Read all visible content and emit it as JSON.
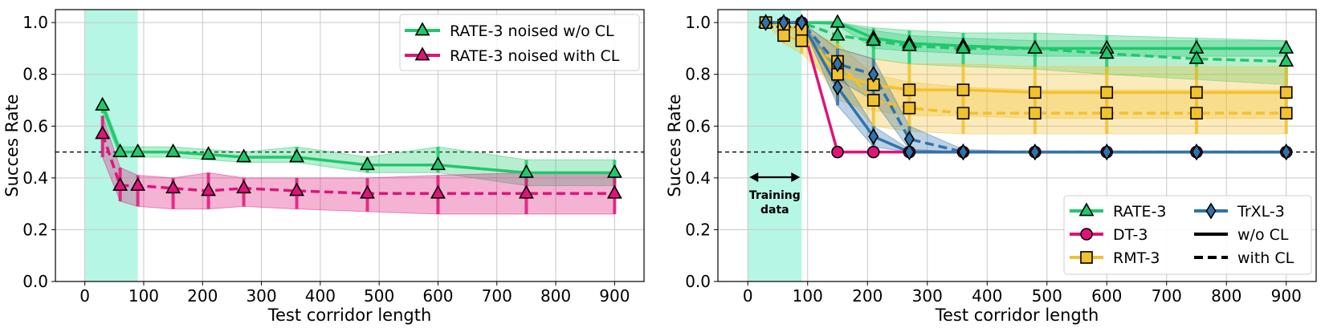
{
  "chart_data": [
    {
      "type": "line",
      "xlabel": "Test corridor length",
      "ylabel": "Succes Rate",
      "xlim": [
        -50,
        950
      ],
      "ylim": [
        0.0,
        1.05
      ],
      "xticks": [
        0,
        100,
        200,
        300,
        400,
        500,
        600,
        700,
        800,
        900
      ],
      "yticks": [
        "0.0",
        "0.2",
        "0.4",
        "0.6",
        "0.8",
        "1.0"
      ],
      "yticks_values": [
        0.0,
        0.2,
        0.4,
        0.6,
        0.8,
        1.0
      ],
      "grid": true,
      "reference_line": 0.5,
      "training_region": [
        0,
        90
      ],
      "legend_position": "top-right",
      "x": [
        30,
        60,
        90,
        150,
        210,
        270,
        360,
        480,
        600,
        750,
        900
      ],
      "series": [
        {
          "name": "RATE-3 noised w/o CL",
          "color": "#1ec96c",
          "dash": "solid",
          "marker": "triangle",
          "values": [
            0.68,
            0.5,
            0.5,
            0.5,
            0.49,
            0.48,
            0.48,
            0.45,
            0.45,
            0.42,
            0.42
          ],
          "lower": [
            0.65,
            0.48,
            0.48,
            0.48,
            0.47,
            0.46,
            0.46,
            0.42,
            0.42,
            0.37,
            0.37
          ],
          "upper": [
            0.7,
            0.52,
            0.52,
            0.52,
            0.51,
            0.5,
            0.52,
            0.48,
            0.52,
            0.47,
            0.47
          ]
        },
        {
          "name": "RATE-3 noised with CL",
          "color": "#e0137a",
          "dash": "dashed",
          "marker": "triangle",
          "values": [
            0.57,
            0.37,
            0.37,
            0.36,
            0.35,
            0.36,
            0.35,
            0.34,
            0.34,
            0.34,
            0.34
          ],
          "lower": [
            0.48,
            0.31,
            0.29,
            0.28,
            0.28,
            0.29,
            0.28,
            0.27,
            0.26,
            0.26,
            0.26
          ],
          "upper": [
            0.64,
            0.44,
            0.41,
            0.4,
            0.42,
            0.4,
            0.4,
            0.4,
            0.41,
            0.42,
            0.42
          ]
        }
      ]
    },
    {
      "type": "line",
      "xlabel": "Test corridor length",
      "ylabel": "Succes Rate",
      "xlim": [
        -50,
        950
      ],
      "ylim": [
        0.0,
        1.05
      ],
      "xticks": [
        0,
        100,
        200,
        300,
        400,
        500,
        600,
        700,
        800,
        900
      ],
      "yticks": [
        "0.0",
        "0.2",
        "0.4",
        "0.6",
        "0.8",
        "1.0"
      ],
      "yticks_values": [
        0.0,
        0.2,
        0.4,
        0.6,
        0.8,
        1.0
      ],
      "grid": true,
      "reference_line": 0.5,
      "training_region": [
        0,
        90
      ],
      "annotation": "Training data",
      "annotation_lines": [
        "Training",
        "data"
      ],
      "legend_position": "bottom-right",
      "legend_entries": [
        {
          "label": "RATE-3",
          "color": "#1ec96c",
          "marker": "triangle",
          "dash": "solid"
        },
        {
          "label": "DT-3",
          "color": "#e0137a",
          "marker": "circle",
          "dash": "solid"
        },
        {
          "label": "RMT-3",
          "color": "#f2c12e",
          "marker": "square",
          "dash": "solid"
        },
        {
          "label": "TrXL-3",
          "color": "#2f73aa",
          "marker": "diamond",
          "dash": "solid"
        },
        {
          "label": "w/o CL",
          "color": "#000000",
          "marker": "none",
          "dash": "solid"
        },
        {
          "label": "with CL",
          "color": "#000000",
          "marker": "none",
          "dash": "dashed"
        }
      ],
      "x": [
        30,
        60,
        90,
        150,
        210,
        270,
        360,
        480,
        600,
        750,
        900
      ],
      "series": [
        {
          "model": "RATE-3",
          "cl": "w/o CL",
          "color": "#1ec96c",
          "dash": "solid",
          "marker": "triangle",
          "values": [
            1.0,
            1.0,
            1.0,
            1.0,
            0.94,
            0.92,
            0.91,
            0.9,
            0.9,
            0.9,
            0.9
          ],
          "lower": [
            1.0,
            1.0,
            1.0,
            0.99,
            0.9,
            0.89,
            0.88,
            0.87,
            0.87,
            0.87,
            0.87
          ],
          "upper": [
            1.0,
            1.0,
            1.0,
            1.0,
            0.97,
            0.95,
            0.94,
            0.93,
            0.93,
            0.93,
            0.93
          ]
        },
        {
          "model": "RATE-3",
          "cl": "with CL",
          "color": "#1ec96c",
          "dash": "dashed",
          "marker": "triangle",
          "values": [
            1.0,
            1.0,
            1.0,
            0.95,
            0.93,
            0.91,
            0.9,
            0.9,
            0.88,
            0.86,
            0.85
          ],
          "lower": [
            1.0,
            1.0,
            1.0,
            0.9,
            0.86,
            0.84,
            0.83,
            0.82,
            0.8,
            0.78,
            0.76
          ],
          "upper": [
            1.0,
            1.0,
            1.0,
            1.0,
            0.98,
            0.97,
            0.96,
            0.96,
            0.95,
            0.94,
            0.93
          ]
        },
        {
          "model": "DT-3",
          "cl": "w/o CL",
          "color": "#e0137a",
          "dash": "solid",
          "marker": "circle",
          "values": [
            1.0,
            1.0,
            1.0,
            0.5,
            0.5,
            0.5,
            0.5,
            0.5,
            0.5,
            0.5,
            0.5
          ],
          "lower": [
            1.0,
            1.0,
            1.0,
            0.5,
            0.5,
            0.5,
            0.5,
            0.5,
            0.5,
            0.5,
            0.5
          ],
          "upper": [
            1.0,
            1.0,
            1.0,
            0.5,
            0.5,
            0.5,
            0.5,
            0.5,
            0.5,
            0.5,
            0.5
          ]
        },
        {
          "model": "RMT-3",
          "cl": "w/o CL",
          "color": "#f2c12e",
          "dash": "solid",
          "marker": "square",
          "values": [
            1.0,
            0.99,
            0.97,
            0.8,
            0.76,
            0.74,
            0.74,
            0.73,
            0.73,
            0.73,
            0.73
          ],
          "lower": [
            1.0,
            0.98,
            0.93,
            0.7,
            0.66,
            0.64,
            0.64,
            0.63,
            0.63,
            0.63,
            0.63
          ],
          "upper": [
            1.0,
            1.0,
            1.0,
            0.9,
            0.86,
            0.84,
            0.84,
            0.83,
            0.83,
            0.83,
            0.83
          ]
        },
        {
          "model": "RMT-3",
          "cl": "with CL",
          "color": "#f2c12e",
          "dash": "dashed",
          "marker": "square",
          "values": [
            1.0,
            0.95,
            0.93,
            0.85,
            0.7,
            0.67,
            0.65,
            0.65,
            0.65,
            0.65,
            0.65
          ],
          "lower": [
            1.0,
            0.92,
            0.88,
            0.75,
            0.6,
            0.58,
            0.57,
            0.57,
            0.57,
            0.57,
            0.57
          ],
          "upper": [
            1.0,
            0.98,
            0.97,
            0.92,
            0.8,
            0.77,
            0.75,
            0.74,
            0.74,
            0.74,
            0.74
          ]
        },
        {
          "model": "TrXL-3",
          "cl": "w/o CL",
          "color": "#2f73aa",
          "dash": "solid",
          "marker": "diamond",
          "values": [
            1.0,
            1.0,
            1.0,
            0.75,
            0.56,
            0.5,
            0.5,
            0.5,
            0.5,
            0.5,
            0.5
          ],
          "lower": [
            1.0,
            1.0,
            1.0,
            0.68,
            0.52,
            0.5,
            0.5,
            0.5,
            0.5,
            0.5,
            0.5
          ],
          "upper": [
            1.0,
            1.0,
            1.0,
            0.82,
            0.6,
            0.51,
            0.5,
            0.5,
            0.5,
            0.5,
            0.5
          ]
        },
        {
          "model": "TrXL-3",
          "cl": "with CL",
          "color": "#2f73aa",
          "dash": "dashed",
          "marker": "diamond",
          "values": [
            1.0,
            1.0,
            1.0,
            0.84,
            0.8,
            0.55,
            0.5,
            0.5,
            0.5,
            0.5,
            0.5
          ],
          "lower": [
            1.0,
            1.0,
            1.0,
            0.78,
            0.7,
            0.51,
            0.5,
            0.5,
            0.5,
            0.5,
            0.5
          ],
          "upper": [
            1.0,
            1.0,
            1.0,
            0.9,
            0.86,
            0.6,
            0.51,
            0.5,
            0.5,
            0.5,
            0.5
          ]
        }
      ]
    }
  ]
}
